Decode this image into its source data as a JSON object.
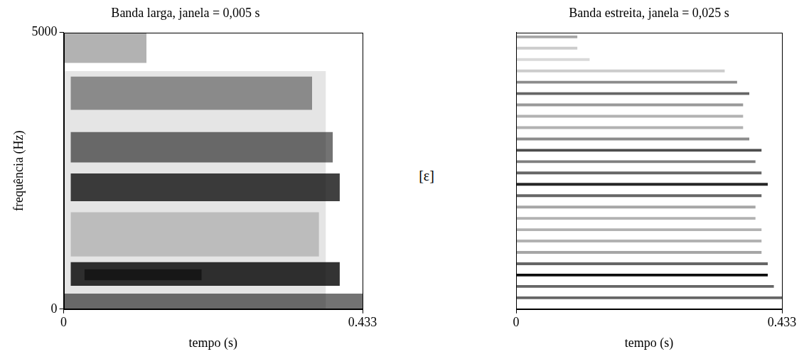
{
  "label": "[ε]",
  "chart_data": [
    {
      "type": "spectrogram",
      "title": "Banda larga, janela = 0,005 s",
      "x_label": "tempo (s)",
      "y_label": "frequência (Hz)",
      "xlim": [
        0,
        0.433
      ],
      "xticks": [
        0,
        0.433
      ],
      "ylim": [
        0,
        5000
      ],
      "yticks": [
        0,
        5000
      ],
      "grid": false,
      "color": "#000000",
      "bands": [
        {
          "low": 0,
          "high": 4300,
          "from": 0,
          "to": 0.38,
          "level": 0.1
        },
        {
          "low": 0,
          "high": 280,
          "from": 0,
          "to": 0.433,
          "level": 0.55
        },
        {
          "low": 420,
          "high": 850,
          "from": 0.01,
          "to": 0.4,
          "level": 0.8
        },
        {
          "low": 520,
          "high": 720,
          "from": 0.03,
          "to": 0.2,
          "level": 0.5
        },
        {
          "low": 950,
          "high": 1750,
          "from": 0.01,
          "to": 0.37,
          "level": 0.18
        },
        {
          "low": 1950,
          "high": 2450,
          "from": 0.01,
          "to": 0.4,
          "level": 0.75
        },
        {
          "low": 2650,
          "high": 3200,
          "from": 0.01,
          "to": 0.39,
          "level": 0.55
        },
        {
          "low": 3600,
          "high": 4200,
          "from": 0.01,
          "to": 0.36,
          "level": 0.4
        },
        {
          "low": 4450,
          "high": 5000,
          "from": 0,
          "to": 0.12,
          "level": 0.3
        }
      ]
    },
    {
      "type": "spectrogram",
      "title": "Banda estreita, janela = 0,025 s",
      "x_label": "tempo (s)",
      "xlim": [
        0,
        0.433
      ],
      "xticks": [
        0,
        0.433
      ],
      "ylim": [
        0,
        5000
      ],
      "tick_labels": "x",
      "grid": false,
      "color": "#000000",
      "bands": [
        {
          "low": 180,
          "high": 230,
          "from": 0,
          "to": 0.433,
          "level": 0.6
        },
        {
          "low": 385,
          "high": 435,
          "from": 0,
          "to": 0.42,
          "level": 0.6
        },
        {
          "low": 590,
          "high": 640,
          "from": 0,
          "to": 0.41,
          "level": 0.95
        },
        {
          "low": 795,
          "high": 845,
          "from": 0,
          "to": 0.41,
          "level": 0.6
        },
        {
          "low": 1000,
          "high": 1050,
          "from": 0,
          "to": 0.4,
          "level": 0.35
        },
        {
          "low": 1205,
          "high": 1255,
          "from": 0,
          "to": 0.4,
          "level": 0.3
        },
        {
          "low": 1410,
          "high": 1460,
          "from": 0,
          "to": 0.4,
          "level": 0.3
        },
        {
          "low": 1615,
          "high": 1665,
          "from": 0,
          "to": 0.39,
          "level": 0.3
        },
        {
          "low": 1820,
          "high": 1870,
          "from": 0,
          "to": 0.39,
          "level": 0.35
        },
        {
          "low": 2025,
          "high": 2075,
          "from": 0,
          "to": 0.4,
          "level": 0.6
        },
        {
          "low": 2230,
          "high": 2280,
          "from": 0,
          "to": 0.41,
          "level": 0.85
        },
        {
          "low": 2435,
          "high": 2485,
          "from": 0,
          "to": 0.4,
          "level": 0.6
        },
        {
          "low": 2640,
          "high": 2690,
          "from": 0,
          "to": 0.39,
          "level": 0.5
        },
        {
          "low": 2845,
          "high": 2895,
          "from": 0,
          "to": 0.4,
          "level": 0.7
        },
        {
          "low": 3050,
          "high": 3100,
          "from": 0,
          "to": 0.38,
          "level": 0.45
        },
        {
          "low": 3255,
          "high": 3305,
          "from": 0,
          "to": 0.37,
          "level": 0.3
        },
        {
          "low": 3460,
          "high": 3510,
          "from": 0,
          "to": 0.37,
          "level": 0.3
        },
        {
          "low": 3665,
          "high": 3715,
          "from": 0,
          "to": 0.37,
          "level": 0.4
        },
        {
          "low": 3870,
          "high": 3920,
          "from": 0,
          "to": 0.38,
          "level": 0.6
        },
        {
          "low": 4075,
          "high": 4125,
          "from": 0,
          "to": 0.36,
          "level": 0.45
        },
        {
          "low": 4280,
          "high": 4330,
          "from": 0,
          "to": 0.34,
          "level": 0.2
        },
        {
          "low": 4485,
          "high": 4535,
          "from": 0,
          "to": 0.12,
          "level": 0.15
        },
        {
          "low": 4690,
          "high": 4740,
          "from": 0,
          "to": 0.1,
          "level": 0.2
        },
        {
          "low": 4895,
          "high": 4945,
          "from": 0,
          "to": 0.1,
          "level": 0.35
        }
      ]
    }
  ]
}
